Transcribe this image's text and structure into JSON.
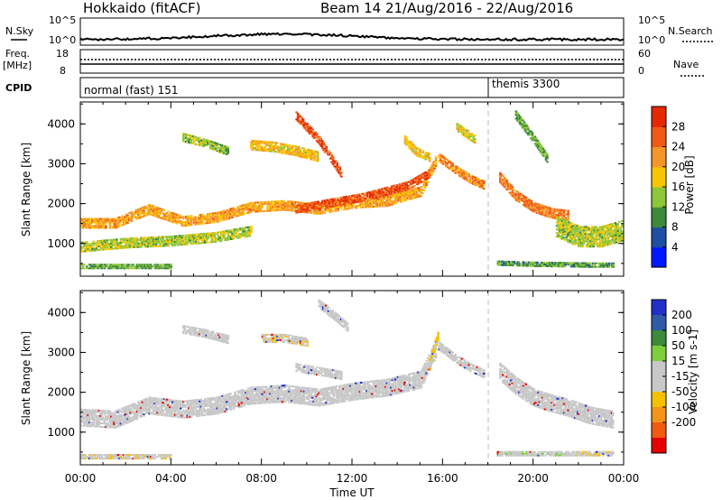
{
  "header": {
    "radar": "Hokkaido (fitACF)",
    "beam_range": "Beam 14 21/Aug/2016 - 22/Aug/2016"
  },
  "summary": {
    "nsky_label": "N.Sky",
    "nsearch_label": "N.Search",
    "noise_ticks": [
      "10^5",
      "10^0"
    ],
    "freq_label": "Freq.",
    "freq_unit": "[MHz]",
    "freq_ticks": [
      "18",
      "8"
    ],
    "nave_label": "Nave",
    "nave_ticks": [
      "60",
      "0"
    ],
    "cpid_label": "CPID",
    "cpid_modes": [
      {
        "name": "normal (fast) 151",
        "start_hour": 0
      },
      {
        "name": "themis 3300",
        "start_hour": 18
      }
    ]
  },
  "colors": {
    "power": [
      "#0018ff",
      "#1f4fa0",
      "#3c8a3c",
      "#8ec63a",
      "#f7c600",
      "#f5962a",
      "#f05a14",
      "#e62800"
    ],
    "velocity": [
      "#2030c8",
      "#2f5aa8",
      "#3c8a3c",
      "#7ccf3a",
      "#c8c8c8",
      "#c8c8c8",
      "#f4c000",
      "#f59418",
      "#f05a12",
      "#e60000"
    ]
  },
  "chart_data": [
    {
      "type": "heatmap",
      "title": "Power",
      "xlabel": "",
      "ylabel": "Slant Range [km]",
      "xlim": [
        0,
        24
      ],
      "ylim": [
        180,
        4550
      ],
      "yticks": [
        "1000",
        "2000",
        "3000",
        "4000"
      ],
      "xticks": [
        "00:00",
        "04:00",
        "08:00",
        "12:00",
        "16:00",
        "20:00",
        "00:00"
      ],
      "colorbar": {
        "label": "Power [dB]",
        "range": [
          0,
          32
        ],
        "ticks": [
          "4",
          "8",
          "12",
          "16",
          "20",
          "24",
          "28"
        ]
      },
      "bands": [
        {
          "x": [
            0,
            1.5,
            3,
            4.5,
            6,
            7.5,
            9,
            10.5,
            12,
            13.5,
            15,
            15.7
          ],
          "y": [
            1500,
            1500,
            1850,
            1550,
            1650,
            1900,
            1950,
            1850,
            2000,
            2050,
            2300,
            3100
          ],
          "w": 260,
          "level": 21
        },
        {
          "x": [
            9.5,
            10.5,
            11.5,
            12.5,
            13.5,
            14.5,
            15.4
          ],
          "y": [
            1850,
            1950,
            2050,
            2150,
            2300,
            2450,
            2750
          ],
          "w": 200,
          "level": 27
        },
        {
          "x": [
            15.8,
            16.5,
            17.2,
            17.8
          ],
          "y": [
            3150,
            2850,
            2600,
            2450
          ],
          "w": 200,
          "level": 23
        },
        {
          "x": [
            18.5,
            19.2,
            20,
            20.8,
            21.5
          ],
          "y": [
            2650,
            2200,
            1900,
            1750,
            1700
          ],
          "w": 260,
          "level": 24
        },
        {
          "x": [
            21,
            22,
            23,
            23.9
          ],
          "y": [
            1400,
            1150,
            1150,
            1300
          ],
          "w": 500,
          "level": 15
        },
        {
          "x": [
            0,
            2,
            4,
            6,
            7.5
          ],
          "y": [
            900,
            1000,
            1050,
            1150,
            1300
          ],
          "w": 250,
          "level": 15
        },
        {
          "x": [
            0,
            1,
            2,
            3,
            4
          ],
          "y": [
            420,
            420,
            420,
            420,
            420
          ],
          "w": 130,
          "level": 12
        },
        {
          "x": [
            18.4,
            20,
            21.5,
            22.5,
            23.5
          ],
          "y": [
            500,
            470,
            460,
            450,
            450
          ],
          "w": 120,
          "level": 11
        },
        {
          "x": [
            4.5,
            5.5,
            6.5
          ],
          "y": [
            3650,
            3500,
            3300
          ],
          "w": 200,
          "level": 14
        },
        {
          "x": [
            7.5,
            8.5,
            9.5,
            10.5
          ],
          "y": [
            3450,
            3400,
            3300,
            3150
          ],
          "w": 230,
          "level": 19
        },
        {
          "x": [
            9.5,
            10.5,
            11.5
          ],
          "y": [
            4200,
            3600,
            2750
          ],
          "w": 220,
          "level": 27
        },
        {
          "x": [
            14.3,
            14.8,
            15.4
          ],
          "y": [
            3600,
            3300,
            3150
          ],
          "w": 220,
          "level": 19
        },
        {
          "x": [
            16.6,
            17.4
          ],
          "y": [
            3900,
            3600
          ],
          "w": 200,
          "level": 17
        },
        {
          "x": [
            19.2,
            20,
            20.6
          ],
          "y": [
            4200,
            3600,
            3100
          ],
          "w": 180,
          "level": 12
        }
      ]
    },
    {
      "type": "heatmap",
      "title": "Velocity",
      "xlabel": "Time UT",
      "ylabel": "Slant Range [km]",
      "xlim": [
        0,
        24
      ],
      "ylim": [
        180,
        4550
      ],
      "yticks": [
        "1000",
        "2000",
        "3000",
        "4000"
      ],
      "xticks": [
        "00:00",
        "04:00",
        "08:00",
        "12:00",
        "16:00",
        "20:00",
        "00:00"
      ],
      "colorbar": {
        "label": "Velocity [m s-1]",
        "range": [
          -250,
          250
        ],
        "ticks": [
          "200",
          "100",
          "50",
          "15",
          "-15",
          "-50",
          "-100",
          "-200"
        ]
      },
      "bands": [
        {
          "x": [
            0,
            1.5,
            3,
            4.5,
            6,
            7.5,
            9,
            10.5,
            12,
            13.5,
            15,
            15.7
          ],
          "y": [
            1350,
            1300,
            1650,
            1550,
            1650,
            1900,
            1950,
            1850,
            2000,
            2100,
            2300,
            3100
          ],
          "w": 420,
          "level": 0
        },
        {
          "x": [
            15.4,
            15.6,
            15.8
          ],
          "y": [
            2700,
            3100,
            3500
          ],
          "w": 260,
          "level": -60
        },
        {
          "x": [
            15.8,
            16.5,
            17.2,
            17.8
          ],
          "y": [
            3150,
            2850,
            2600,
            2450
          ],
          "w": 200,
          "level": 0
        },
        {
          "x": [
            18.5,
            19.2,
            20,
            20.8,
            21.5,
            22.5,
            23.5
          ],
          "y": [
            2500,
            2150,
            1850,
            1700,
            1600,
            1400,
            1300
          ],
          "w": 420,
          "level": 0
        },
        {
          "x": [
            0,
            1,
            2,
            3,
            4
          ],
          "y": [
            380,
            380,
            380,
            380,
            380
          ],
          "w": 130,
          "level": -40
        },
        {
          "x": [
            18.4,
            19.5,
            20.5,
            21.5
          ],
          "y": [
            450,
            450,
            450,
            450
          ],
          "w": 120,
          "level": 40
        },
        {
          "x": [
            21.5,
            22.5,
            23.5
          ],
          "y": [
            450,
            450,
            450
          ],
          "w": 120,
          "level": -40
        },
        {
          "x": [
            8,
            9,
            10
          ],
          "y": [
            3350,
            3350,
            3250
          ],
          "w": 220,
          "level": -40
        },
        {
          "x": [
            10.5,
            11.2,
            11.8
          ],
          "y": [
            4200,
            3900,
            3600
          ],
          "w": 200,
          "level": 0
        },
        {
          "x": [
            4.5,
            5.5,
            6.5
          ],
          "y": [
            3550,
            3450,
            3300
          ],
          "w": 180,
          "level": -30
        },
        {
          "x": [
            9.5,
            10.5,
            11.5
          ],
          "y": [
            2600,
            2500,
            2400
          ],
          "w": 180,
          "level": -30
        }
      ]
    }
  ]
}
